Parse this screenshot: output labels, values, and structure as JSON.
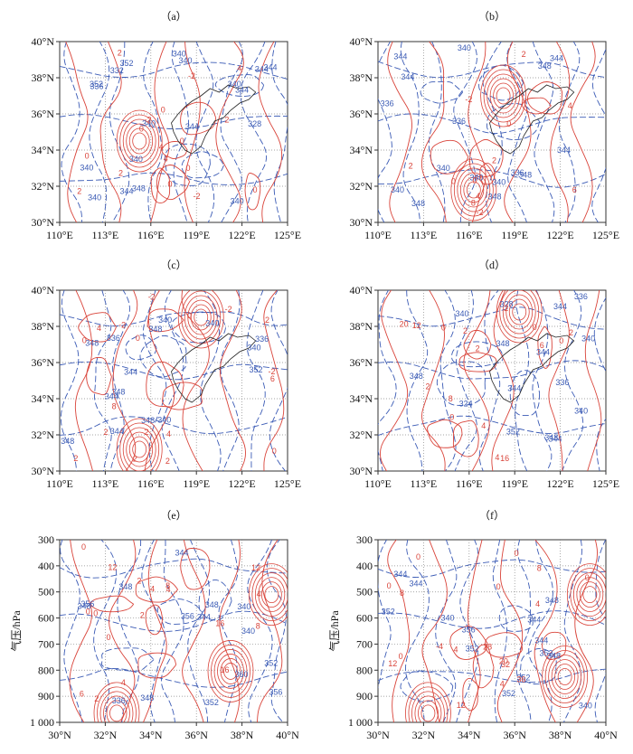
{
  "figure": {
    "panels": [
      "a",
      "b",
      "c",
      "d",
      "e",
      "f"
    ]
  },
  "chart_data": [
    {
      "id": "a",
      "type": "contour",
      "title": "（a）",
      "x_ticks": [
        "110°E",
        "113°E",
        "116°E",
        "119°E",
        "122°E",
        "125°E"
      ],
      "y_ticks": [
        "30°N",
        "32°N",
        "34°N",
        "36°N",
        "38°N",
        "40°N"
      ],
      "blue_labels": [
        "332",
        "328",
        "340",
        "340",
        "340",
        "336",
        "344",
        "344",
        "340",
        "344",
        "340",
        "352",
        "352",
        "344",
        "348",
        "340",
        "340",
        "344",
        "340"
      ],
      "red_labels": [
        "-2",
        "0",
        "-2",
        "2",
        "0",
        "4",
        "0",
        "2",
        "2",
        "0",
        "4",
        "0",
        "4",
        "0",
        "2",
        "0",
        "-2"
      ]
    },
    {
      "id": "b",
      "type": "contour",
      "title": "（b）",
      "x_ticks": [
        "110°E",
        "113°E",
        "116°E",
        "119°E",
        "122°E",
        "125°E"
      ],
      "y_ticks": [
        "30°N",
        "32°N",
        "34°N",
        "36°N",
        "38°N",
        "40°N"
      ],
      "blue_labels": [
        "336",
        "340",
        "340",
        "344",
        "348",
        "344",
        "336",
        "340",
        "344",
        "348",
        "348",
        "344",
        "336",
        "340",
        "340",
        "348"
      ],
      "red_labels": [
        "-2",
        "2",
        "4",
        "6",
        "0",
        "0",
        "2",
        "-2",
        "0",
        "4",
        "8",
        "2"
      ]
    },
    {
      "id": "c",
      "type": "contour",
      "title": "（c）",
      "x_ticks": [
        "110°E",
        "113°E",
        "116°E",
        "119°E",
        "122°E",
        "125°E"
      ],
      "y_ticks": [
        "30°N",
        "32°N",
        "34°N",
        "36°N",
        "38°N",
        "40°N"
      ],
      "blue_labels": [
        "340",
        "336",
        "340",
        "340",
        "344",
        "348",
        "348",
        "340",
        "344",
        "348",
        "348",
        "336",
        "348",
        "352",
        "344"
      ],
      "red_labels": [
        "2",
        "-2",
        "4",
        "8",
        "2",
        "0",
        "-2",
        "2",
        "0",
        "-2",
        "0",
        "0",
        "6",
        "2",
        "4",
        "2",
        "-2",
        "2"
      ]
    },
    {
      "id": "d",
      "type": "contour",
      "title": "（d）",
      "x_ticks": [
        "110°E",
        "113°E",
        "116°E",
        "119°E",
        "122°E",
        "125°E"
      ],
      "y_ticks": [
        "30°N",
        "32°N",
        "34°N",
        "36°N",
        "38°N",
        "40°N"
      ],
      "blue_labels": [
        "328",
        "324",
        "336",
        "336",
        "344",
        "340",
        "344",
        "348",
        "348",
        "344",
        "340",
        "344",
        "352",
        "340",
        "348"
      ],
      "red_labels": [
        "12",
        "20",
        "8",
        "16",
        "4",
        "2",
        "2",
        "0",
        "0",
        "2",
        "4",
        "6",
        "2",
        "2",
        "0",
        "0"
      ]
    },
    {
      "id": "e",
      "type": "contour",
      "title": "（e）",
      "y_axis_label": "气压/hPa",
      "x_ticks": [
        "30°N",
        "32°N",
        "34°N",
        "36°N",
        "38°N",
        "40°N"
      ],
      "y_ticks": [
        "300",
        "400",
        "500",
        "600",
        "700",
        "800",
        "900",
        "1 000"
      ],
      "blue_labels": [
        "348",
        "344",
        "356",
        "352",
        "348",
        "340",
        "336",
        "344",
        "348",
        "340",
        "352",
        "356",
        "356",
        "360",
        "348"
      ],
      "red_labels": [
        "2",
        "4",
        "0",
        "4",
        "16",
        "6",
        "2",
        "0",
        "12",
        "2",
        "0",
        "8",
        "12",
        "16",
        "4",
        "0",
        "8",
        "4"
      ]
    },
    {
      "id": "f",
      "type": "contour",
      "title": "（f）",
      "y_axis_label": "气压/hPa",
      "x_ticks": [
        "30°N",
        "32°N",
        "34°N",
        "36°N",
        "38°N",
        "40°N"
      ],
      "y_ticks": [
        "300",
        "400",
        "500",
        "600",
        "700",
        "800",
        "900",
        "1 000"
      ],
      "blue_labels": [
        "348",
        "344",
        "344",
        "352",
        "340",
        "348",
        "352",
        "344",
        "352",
        "344",
        "352",
        "356",
        "352",
        "340"
      ],
      "red_labels": [
        "0",
        "0",
        "4",
        "0",
        "-4",
        "12",
        "20",
        "8",
        "4",
        "0",
        "4",
        "0",
        "0",
        "12",
        "32",
        "36",
        "28",
        "8"
      ]
    }
  ]
}
